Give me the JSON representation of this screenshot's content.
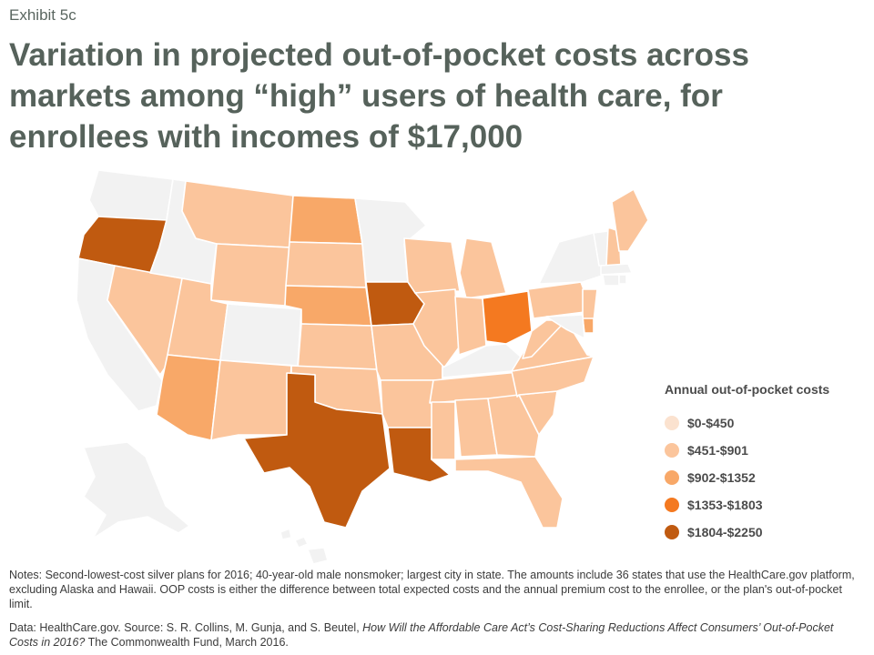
{
  "exhibit_label": "Exhibit 5c",
  "title_lines": [
    "Variation in projected out-of-pocket costs across",
    "markets among “high” users of health care, for",
    "enrollees with incomes of $17,000"
  ],
  "legend": {
    "title": "Annual out-of-pocket costs",
    "items": [
      {
        "label": "$0-$450",
        "color": "#fbe2cf"
      },
      {
        "label": "$451-$901",
        "color": "#fbc59c"
      },
      {
        "label": "$902-$1352",
        "color": "#f8a868"
      },
      {
        "label": "$1353-$1803",
        "color": "#f47920"
      },
      {
        "label": "$1804-$2250",
        "color": "#c05a10"
      }
    ]
  },
  "no_data_color": "#f2f2f2",
  "states": {
    "WA": null,
    "OR": "$1804-$2250",
    "CA": null,
    "NV": "$451-$901",
    "ID": null,
    "MT": "$451-$901",
    "WY": "$451-$901",
    "UT": "$451-$901",
    "AZ": "$902-$1352",
    "CO": null,
    "NM": "$451-$901",
    "ND": "$902-$1352",
    "SD": "$451-$901",
    "NE": "$902-$1352",
    "KS": "$451-$901",
    "OK": "$451-$901",
    "TX": "$1804-$2250",
    "MN": null,
    "IA": "$1804-$2250",
    "MO": "$451-$901",
    "AR": "$451-$901",
    "LA": "$1804-$2250",
    "WI": "$451-$901",
    "IL": "$451-$901",
    "MI": "$451-$901",
    "IN": "$451-$901",
    "OH": "$1353-$1803",
    "KY": null,
    "TN": "$451-$901",
    "MS": "$451-$901",
    "AL": "$451-$901",
    "GA": "$451-$901",
    "FL": "$451-$901",
    "SC": "$451-$901",
    "NC": "$451-$901",
    "VA": "$451-$901",
    "WV": "$451-$901",
    "PA": "$451-$901",
    "NY": null,
    "NJ": "$451-$901",
    "DE": "$902-$1352",
    "MD": null,
    "VT": null,
    "NH": "$451-$901",
    "ME": "$451-$901",
    "MA": null,
    "CT": null,
    "RI": null,
    "AK": null,
    "HI": null
  },
  "notes": "Notes: Second-lowest-cost silver plans for 2016; 40-year-old male nonsmoker; largest city in state. The amounts include 36 states that use the HealthCare.gov platform, excluding Alaska and Hawaii. OOP costs is either the difference between total expected costs and the annual premium cost to the enrollee, or the plan's out-of-pocket limit.",
  "source": {
    "prefix": "Data: HealthCare.gov. Source: S. R. Collins, M. Gunja, and S. Beutel, ",
    "italic": "How Will the Affordable Care Act’s Cost-Sharing Reductions Affect Consumers’ Out-of-Pocket Costs in 2016?",
    "suffix": " The Commonwealth Fund, March 2016."
  }
}
